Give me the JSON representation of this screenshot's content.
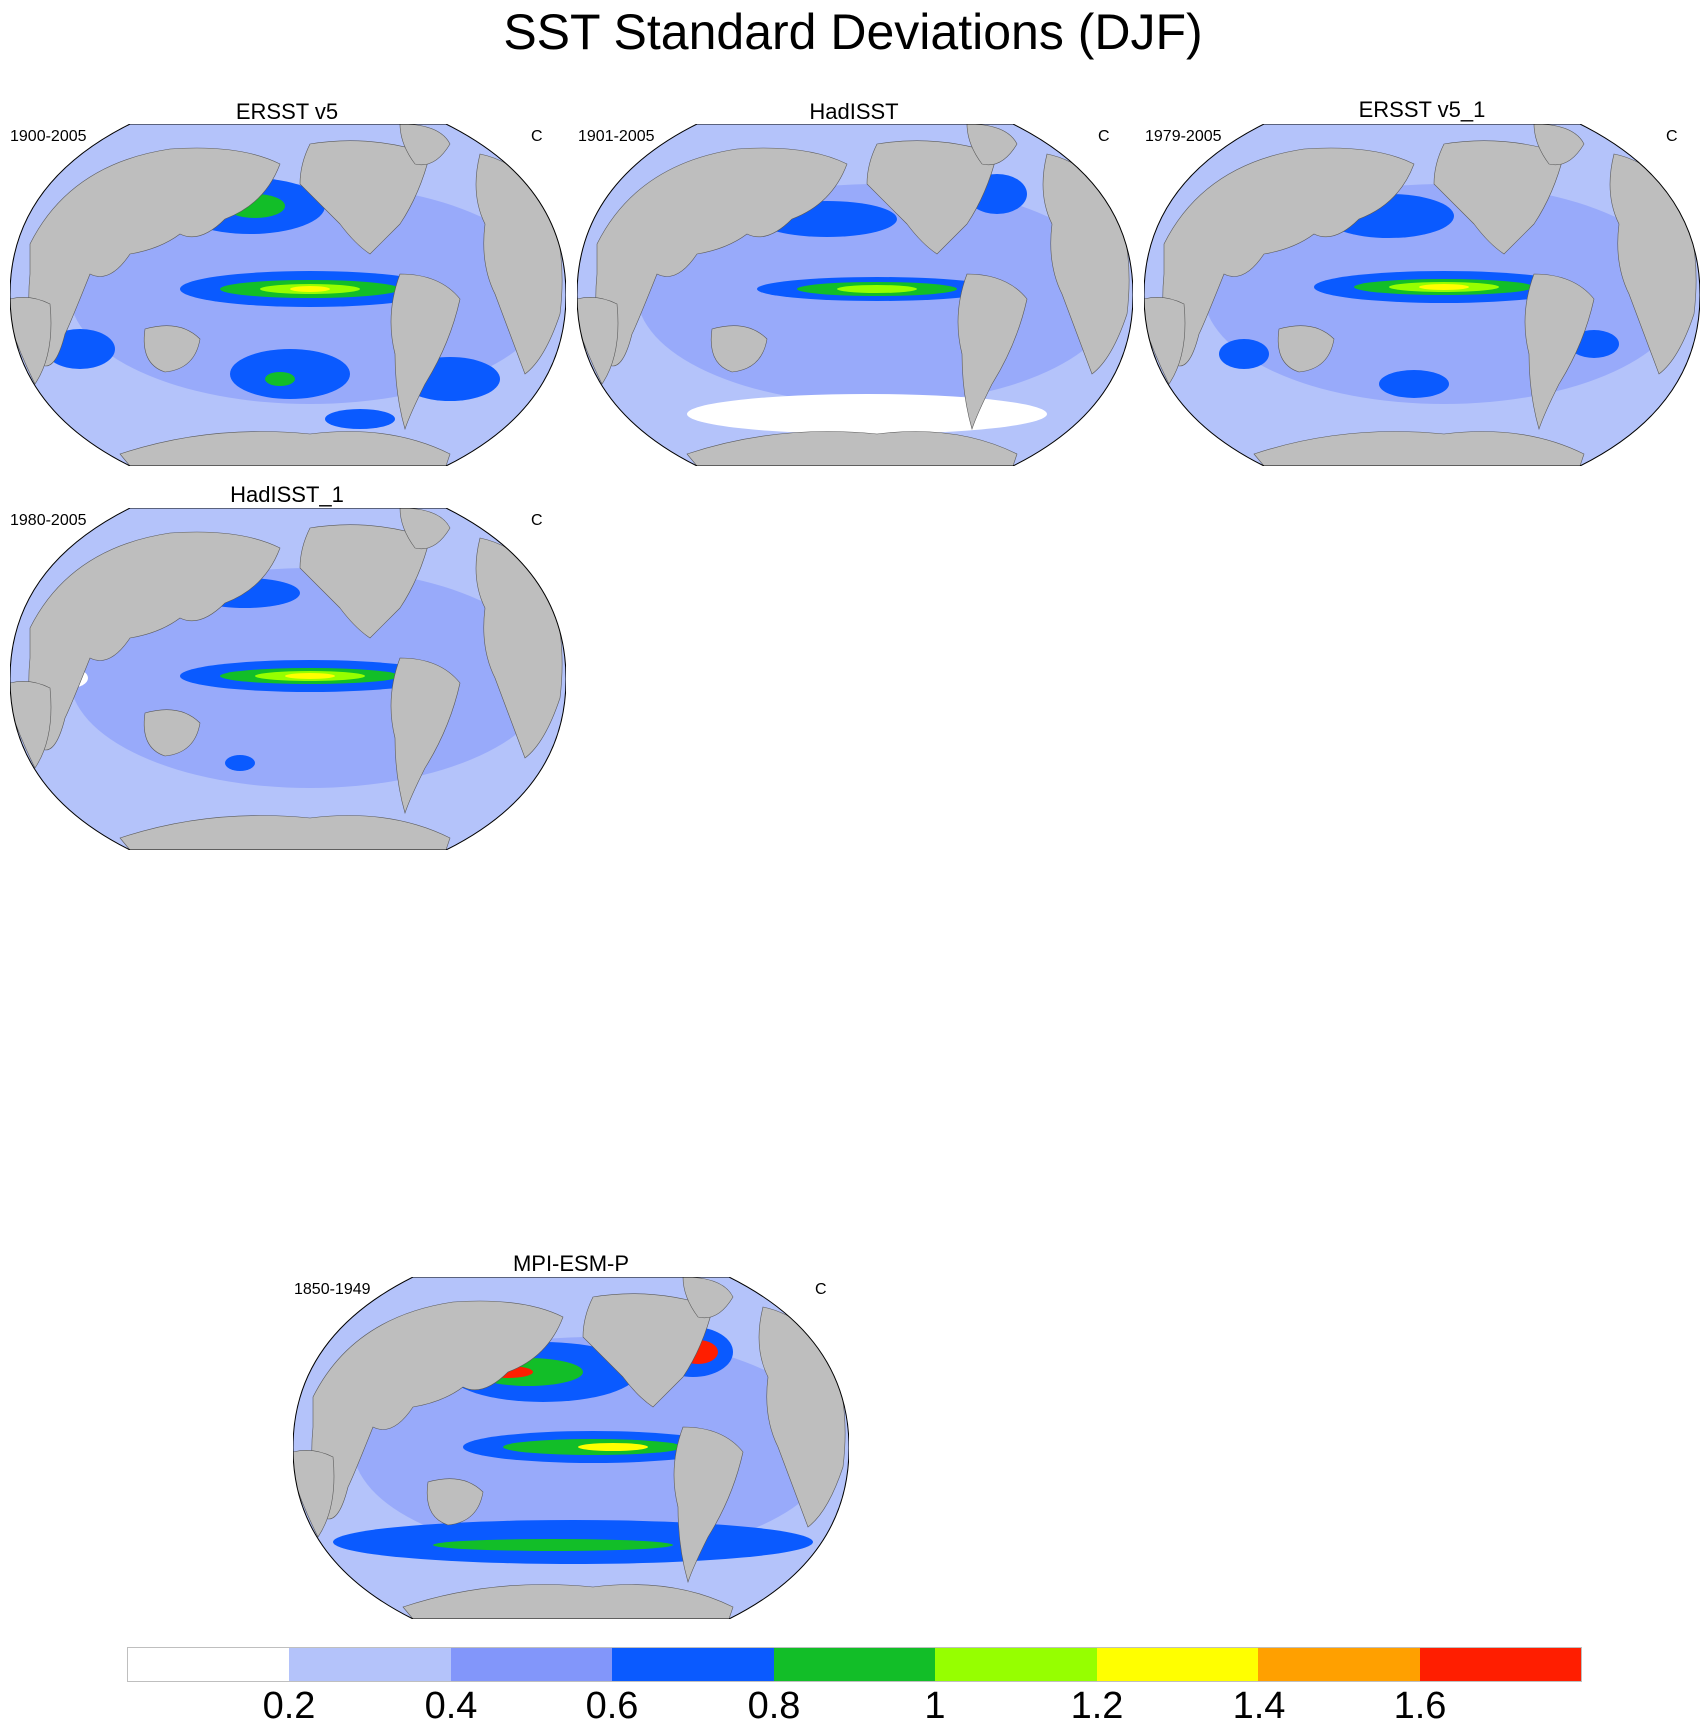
{
  "title": "SST Standard Deviations (DJF)",
  "panels": [
    {
      "title": "ERSST v5",
      "period": "1900-2005",
      "units": "C"
    },
    {
      "title": "HadISST",
      "period": "1901-2005",
      "units": "C"
    },
    {
      "title": "ERSST v5_1",
      "period": "1979-2005",
      "units": "C"
    },
    {
      "title": "HadISST_1",
      "period": "1980-2005",
      "units": "C"
    },
    {
      "title": "MPI-ESM-P",
      "period": "1850-1949",
      "units": "C"
    }
  ],
  "colorbar": {
    "labels": [
      "0.2",
      "0.4",
      "0.6",
      "0.8",
      "1",
      "1.2",
      "1.4",
      "1.6"
    ],
    "colors": [
      "#ffffff",
      "#b4c3fa",
      "#8296fa",
      "#0a5aff",
      "#12be28",
      "#96ff00",
      "#ffff00",
      "#ffa000",
      "#ff1e00"
    ]
  },
  "map_colors": {
    "land": "#bebebe",
    "ocean_low": "#b4c3fa"
  }
}
